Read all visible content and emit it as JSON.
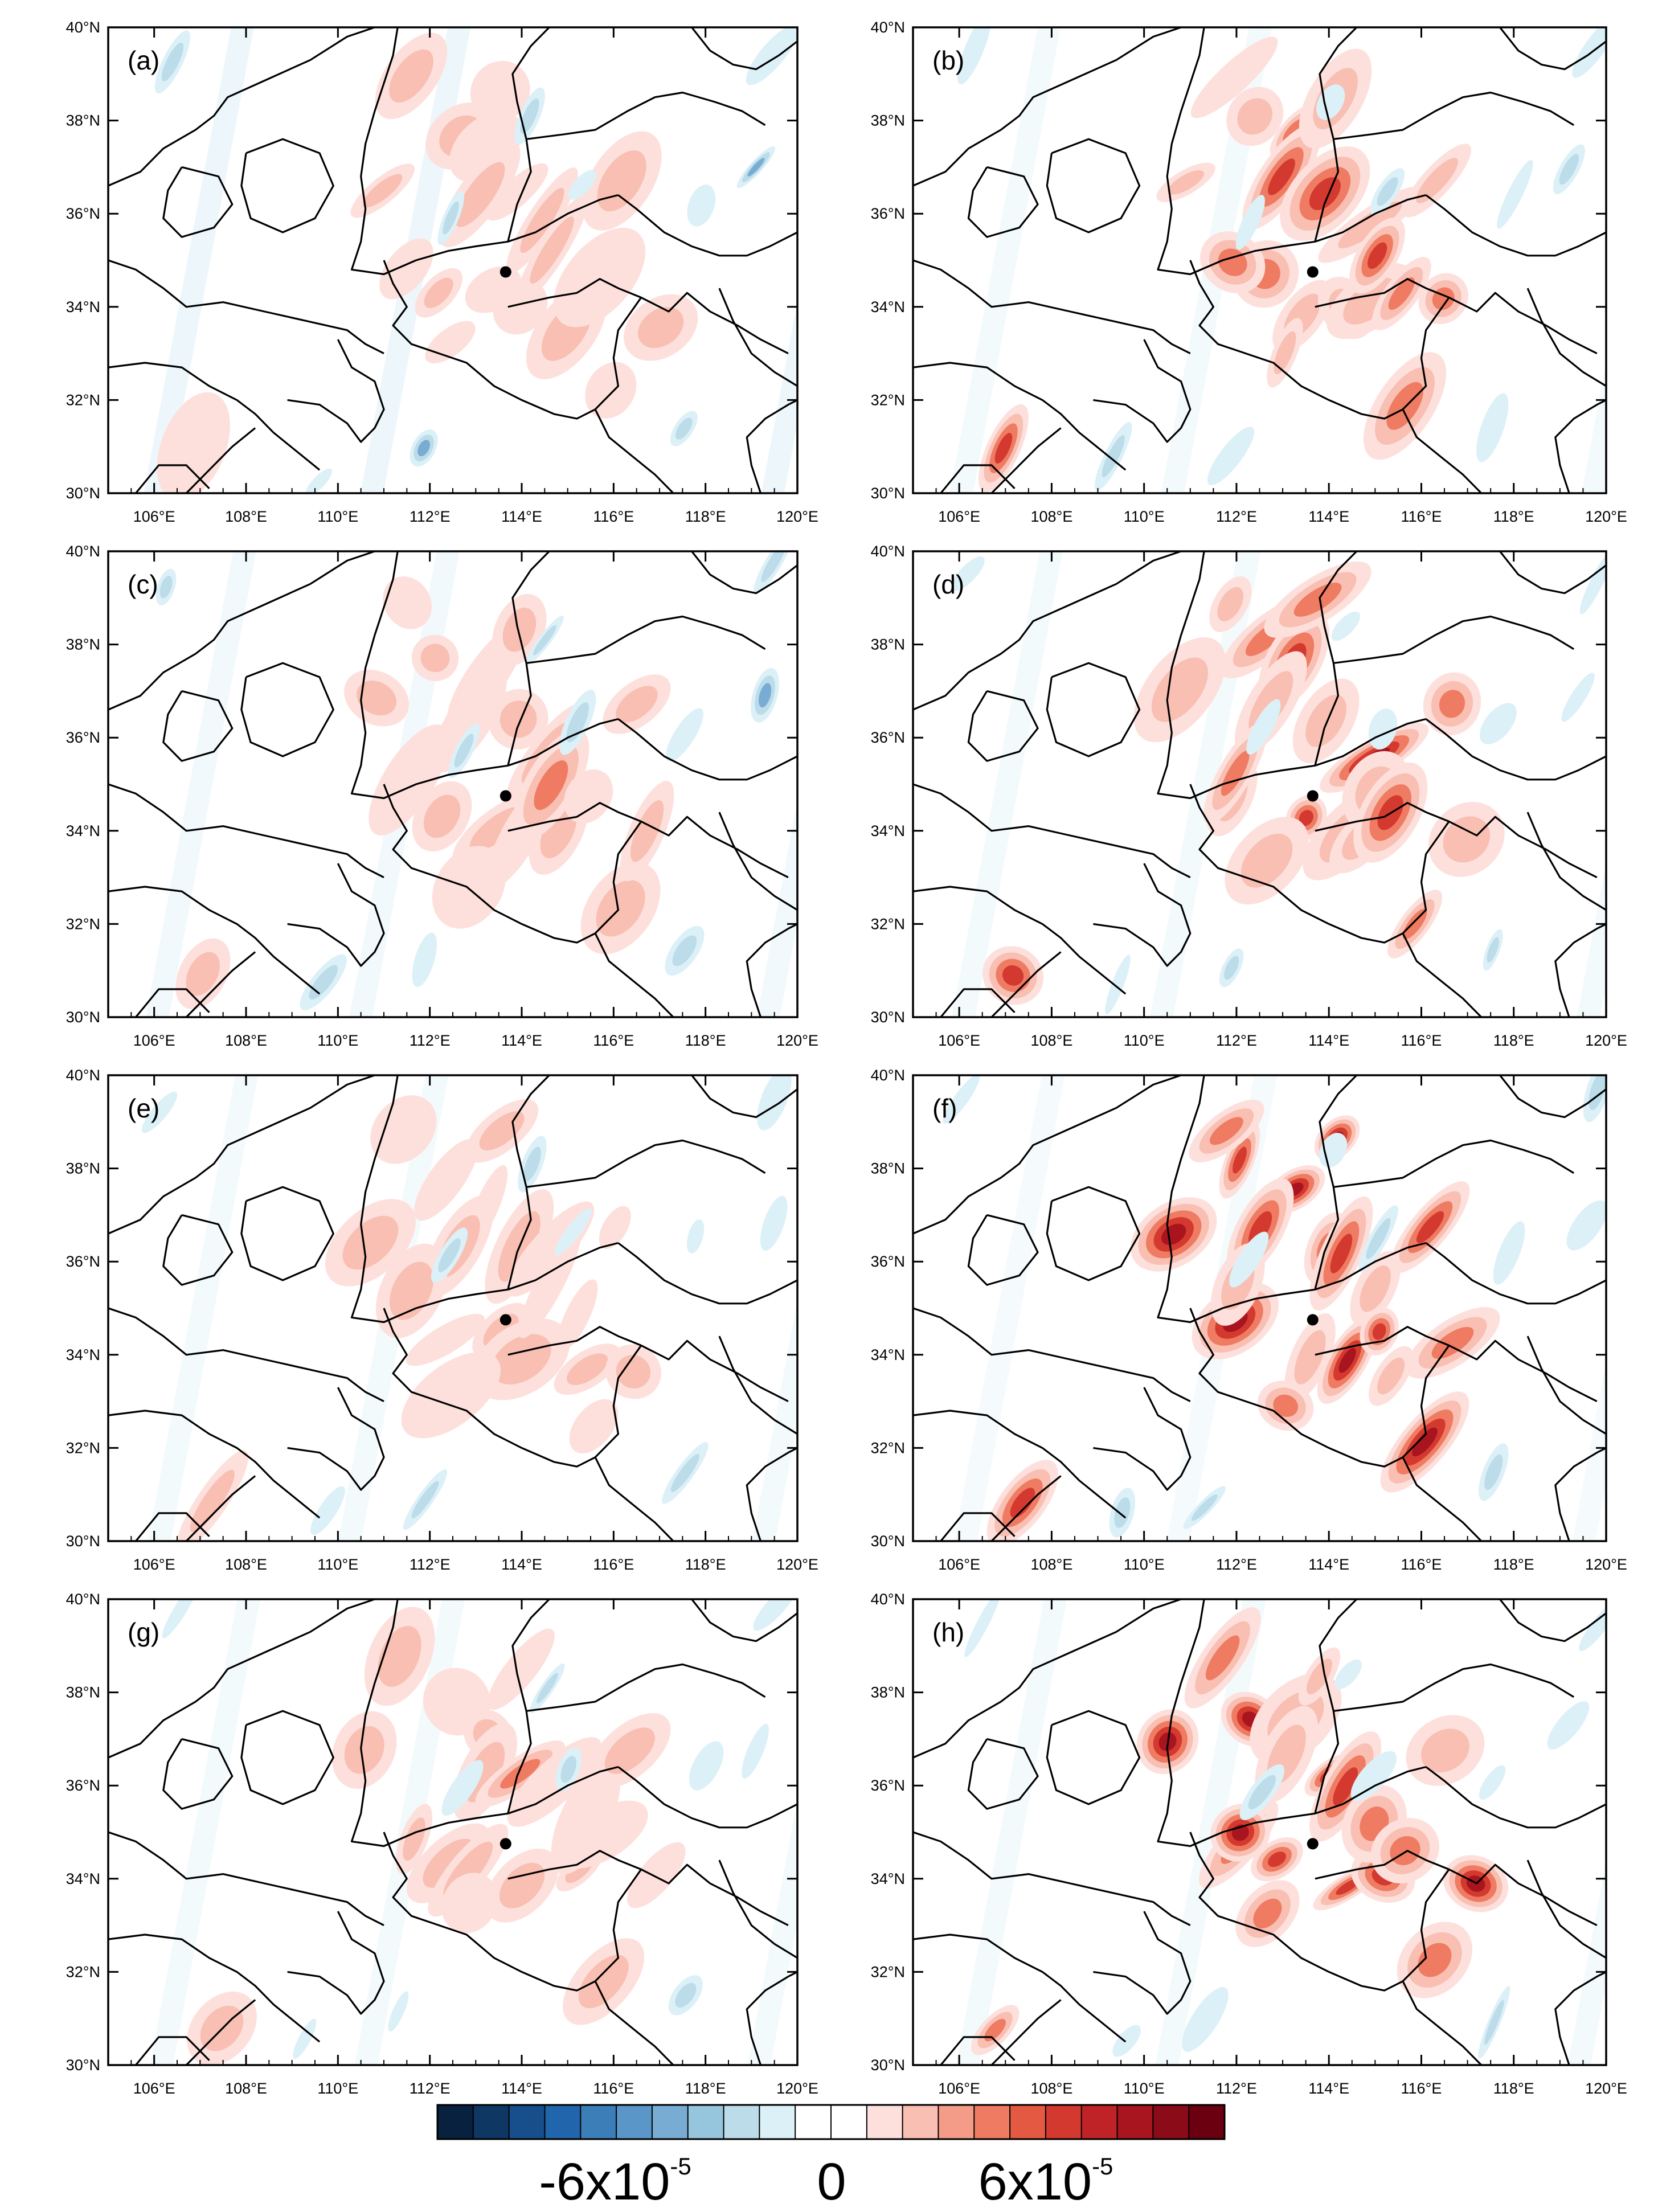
{
  "figure": {
    "panels": [
      {
        "label": "(a)",
        "intensity": 0.45,
        "neg": 0.9
      },
      {
        "label": "(b)",
        "intensity": 0.75,
        "neg": 0.6
      },
      {
        "label": "(c)",
        "intensity": 0.5,
        "neg": 0.7
      },
      {
        "label": "(d)",
        "intensity": 0.9,
        "neg": 0.6
      },
      {
        "label": "(e)",
        "intensity": 0.45,
        "neg": 0.6
      },
      {
        "label": "(f)",
        "intensity": 0.95,
        "neg": 0.5
      },
      {
        "label": "(g)",
        "intensity": 0.5,
        "neg": 0.6
      },
      {
        "label": "(h)",
        "intensity": 0.95,
        "neg": 0.6
      }
    ],
    "x_ticks": [
      "106°E",
      "108°E",
      "110°E",
      "112°E",
      "114°E",
      "116°E",
      "118°E",
      "120°E"
    ],
    "y_ticks": [
      "30°N",
      "32°N",
      "34°N",
      "36°N",
      "38°N",
      "40°N"
    ],
    "lon_range": [
      105,
      120
    ],
    "lat_range": [
      30,
      40
    ],
    "marker": {
      "lon": 113.65,
      "lat": 34.75,
      "color": "#000000"
    },
    "colorbar": {
      "labels": {
        "neg_base": "-6x10",
        "neg_exp": "-5",
        "zero": "0",
        "pos_base": "6x10",
        "pos_exp": "-5"
      },
      "colors": [
        "#08213f",
        "#0e3763",
        "#164f8b",
        "#2166ac",
        "#3b7eb8",
        "#5a97c8",
        "#78acd3",
        "#96c5de",
        "#bcdcea",
        "#dcf0f7",
        "#ffffff",
        "#ffffff",
        "#fde0dc",
        "#f8bfb2",
        "#f49c87",
        "#ee7b62",
        "#e45941",
        "#d4392f",
        "#c02327",
        "#a8151f",
        "#8c0b18",
        "#6b0011"
      ]
    },
    "colors": {
      "border": "#000000",
      "positive": "#d6372f",
      "negative": "#2f7fb8"
    }
  }
}
